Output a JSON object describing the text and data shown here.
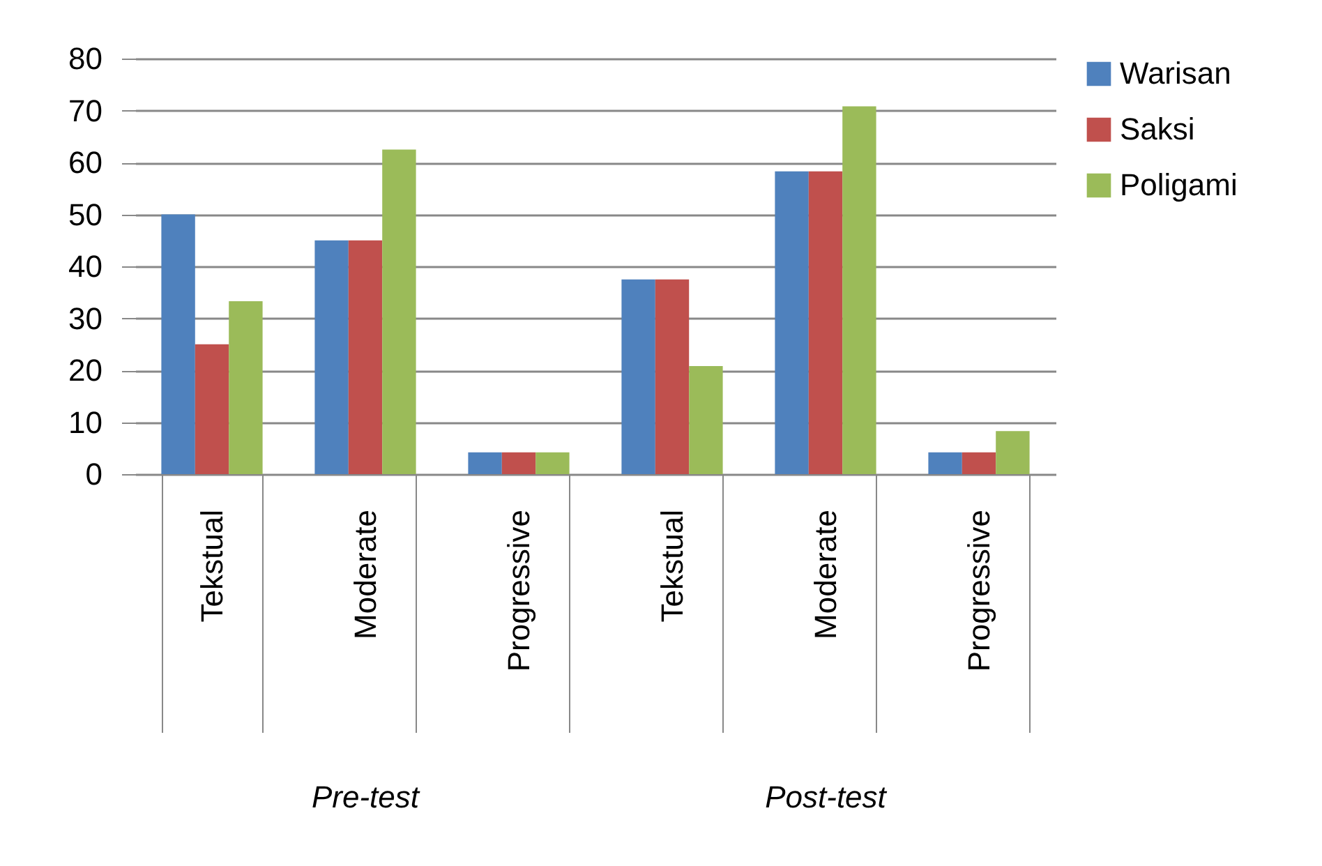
{
  "chart_data": {
    "type": "bar",
    "categories": [
      "Tekstual",
      "Moderate",
      "Progressive",
      "Tekstual",
      "Moderate",
      "Progressive"
    ],
    "series": [
      {
        "name": "Warisan",
        "color": "#4f81bd",
        "values": [
          50,
          45,
          4.2,
          37.5,
          58.3,
          4.2
        ]
      },
      {
        "name": "Saksi",
        "color": "#c0504d",
        "values": [
          25,
          45,
          4.2,
          37.5,
          58.3,
          4.2
        ]
      },
      {
        "name": "Poligami",
        "color": "#9bbb59",
        "values": [
          33.3,
          62.5,
          4.2,
          20.8,
          70.8,
          8.3
        ]
      }
    ],
    "ylim": [
      0,
      80
    ],
    "yticks": [
      0,
      10,
      20,
      30,
      40,
      50,
      60,
      70,
      80
    ],
    "grid": "y",
    "legend": "right",
    "annotations": [
      "Pre-test",
      "Post-test"
    ]
  }
}
